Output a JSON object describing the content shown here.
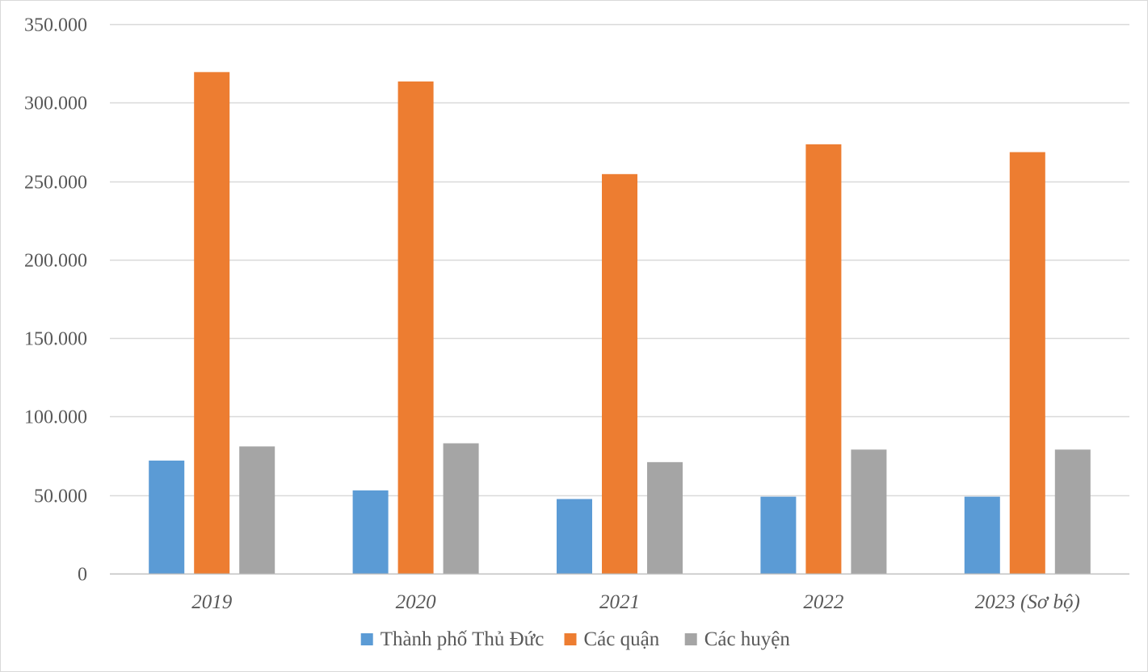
{
  "chart_data": {
    "type": "bar",
    "title": "",
    "xlabel": "",
    "ylabel": "",
    "categories": [
      "2019",
      "2020",
      "2021",
      "2022",
      "2023 (Sơ bộ)"
    ],
    "series": [
      {
        "name": "Thành phố Thủ Đức",
        "color": "#5b9bd5",
        "values": [
          72000,
          53000,
          47500,
          49000,
          49000
        ]
      },
      {
        "name": "Các quận",
        "color": "#ed7d31",
        "values": [
          319500,
          313500,
          254500,
          273500,
          268500
        ]
      },
      {
        "name": "Các huyện",
        "color": "#a5a5a5",
        "values": [
          81000,
          83000,
          71000,
          79000,
          79000
        ]
      }
    ],
    "ylim": [
      0,
      350000
    ],
    "yticks": [
      0,
      50000,
      100000,
      150000,
      200000,
      250000,
      300000,
      350000
    ],
    "ytick_labels": [
      "0",
      "50.000",
      "100.000",
      "150.000",
      "200.000",
      "250.000",
      "300.000",
      "350.000"
    ],
    "grid": true,
    "legend_position": "bottom"
  }
}
